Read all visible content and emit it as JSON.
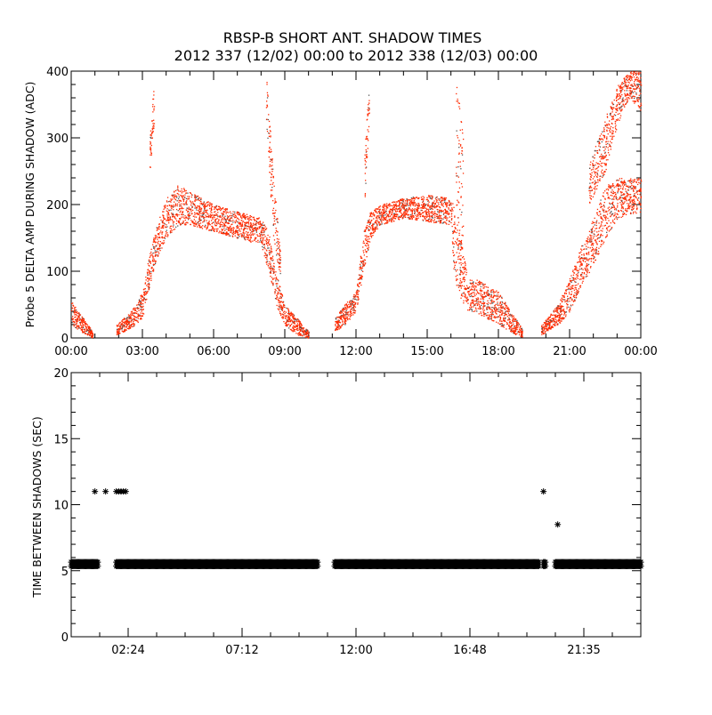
{
  "chart_data": [
    {
      "type": "scatter",
      "title": "RBSP-B SHORT ANT. SHADOW TIMES",
      "subtitle": "2012 337 (12/02) 00:00 to 2012 338 (12/03) 00:00",
      "xlabel": "",
      "ylabel": "Probe 5 DELTA AMP DURING SHADOW (ADC)",
      "xlim_hours": [
        0,
        24
      ],
      "ylim": [
        0,
        400
      ],
      "x_ticks_hours": [
        0,
        3,
        6,
        9,
        12,
        15,
        18,
        21,
        24
      ],
      "x_tick_labels": [
        "00:00",
        "03:00",
        "06:00",
        "09:00",
        "12:00",
        "15:00",
        "18:00",
        "21:00",
        "00:00"
      ],
      "y_ticks": [
        0,
        100,
        200,
        300,
        400
      ],
      "y_tick_labels": [
        "0",
        "100",
        "200",
        "300",
        "400"
      ],
      "point_color": "#ff2a00",
      "series_bands_note": "hour, low, high envelope of scattered points",
      "bands": [
        [
          [
            0,
            20,
            55
          ],
          [
            0.5,
            8,
            30
          ],
          [
            0.9,
            0,
            10
          ]
        ],
        [
          [
            1.9,
            5,
            20
          ],
          [
            2.5,
            15,
            40
          ],
          [
            3.0,
            30,
            70
          ],
          [
            3.3,
            80,
            130
          ],
          [
            3.6,
            120,
            170
          ],
          [
            4.0,
            150,
            210
          ],
          [
            4.5,
            170,
            230
          ],
          [
            5.0,
            170,
            220
          ],
          [
            6.0,
            160,
            200
          ],
          [
            7.0,
            150,
            190
          ],
          [
            8.0,
            140,
            180
          ],
          [
            8.3,
            100,
            160
          ],
          [
            8.6,
            50,
            100
          ],
          [
            9.0,
            20,
            50
          ],
          [
            9.5,
            5,
            30
          ],
          [
            10.0,
            0,
            10
          ]
        ],
        [
          [
            3.3,
            250,
            300
          ],
          [
            3.5,
            330,
            400
          ]
        ],
        [
          [
            8.2,
            400,
            330
          ],
          [
            8.5,
            250,
            150
          ],
          [
            8.8,
            130,
            90
          ]
        ],
        [
          [
            11.1,
            10,
            30
          ],
          [
            11.5,
            20,
            50
          ],
          [
            12.0,
            40,
            70
          ],
          [
            12.3,
            100,
            160
          ],
          [
            12.6,
            150,
            190
          ],
          [
            13.0,
            170,
            200
          ],
          [
            14.0,
            180,
            210
          ],
          [
            15.0,
            175,
            215
          ],
          [
            16.0,
            170,
            210
          ],
          [
            16.1,
            90,
            200
          ],
          [
            16.4,
            60,
            150
          ],
          [
            16.7,
            40,
            90
          ],
          [
            17.0,
            40,
            90
          ],
          [
            18.0,
            20,
            70
          ],
          [
            18.5,
            10,
            40
          ],
          [
            19.0,
            0,
            15
          ]
        ],
        [
          [
            12.35,
            200,
            280
          ],
          [
            12.55,
            330,
            400
          ]
        ],
        [
          [
            16.2,
            150,
            400
          ],
          [
            16.5,
            100,
            300
          ]
        ],
        [
          [
            19.8,
            5,
            20
          ],
          [
            20.5,
            20,
            50
          ],
          [
            21.0,
            40,
            90
          ],
          [
            21.5,
            80,
            140
          ],
          [
            22.0,
            110,
            180
          ],
          [
            22.5,
            150,
            230
          ],
          [
            23.0,
            180,
            240
          ],
          [
            24.0,
            190,
            240
          ]
        ],
        [
          [
            21.8,
            200,
            260
          ],
          [
            22.5,
            250,
            330
          ],
          [
            23.0,
            320,
            380
          ],
          [
            23.5,
            360,
            400
          ],
          [
            24.0,
            340,
            400
          ]
        ]
      ]
    },
    {
      "type": "scatter",
      "xlabel": "",
      "ylabel": "TIME BETWEEN SHADOWS (SEC)",
      "xlim_hours": [
        0,
        24
      ],
      "ylim": [
        0,
        20
      ],
      "x_ticks_hours": [
        2.4,
        7.2,
        12,
        16.8,
        21.6
      ],
      "x_tick_labels": [
        "02:24",
        "07:12",
        "12:00",
        "16:48",
        "21:35"
      ],
      "y_ticks": [
        0,
        5,
        10,
        15,
        20
      ],
      "y_tick_labels": [
        "0",
        "5",
        "10",
        "15",
        "20"
      ],
      "marker": "asterisk",
      "point_color": "#000000",
      "segments_at_5_5_sec": [
        [
          0,
          1.15
        ],
        [
          1.9,
          10.4
        ],
        [
          11.1,
          19.7
        ],
        [
          19.9,
          20.0
        ],
        [
          20.4,
          24
        ]
      ],
      "points": [
        [
          1.0,
          11
        ],
        [
          1.45,
          11
        ],
        [
          1.9,
          11
        ],
        [
          2.0,
          11
        ],
        [
          2.1,
          11
        ],
        [
          2.2,
          11
        ],
        [
          2.3,
          11
        ],
        [
          19.9,
          11
        ],
        [
          20.5,
          8.5
        ]
      ]
    }
  ]
}
